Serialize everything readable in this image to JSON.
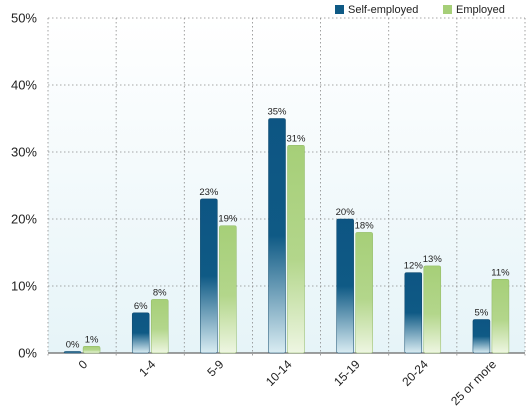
{
  "chart_data": {
    "type": "bar",
    "categories": [
      "0",
      "1-4",
      "5-9",
      "10-14",
      "15-19",
      "20-24",
      "25 or more"
    ],
    "series": [
      {
        "name": "Self-employed",
        "values": [
          0,
          6,
          23,
          35,
          20,
          12,
          5
        ],
        "labels": [
          "0%",
          "6%",
          "23%",
          "35%",
          "20%",
          "12%",
          "5%"
        ],
        "color": "#0f5a85"
      },
      {
        "name": "Employed",
        "values": [
          1,
          8,
          19,
          31,
          18,
          13,
          11
        ],
        "labels": [
          "1%",
          "8%",
          "19%",
          "31%",
          "18%",
          "13%",
          "11%"
        ],
        "color": "#a6cf78"
      }
    ],
    "ylim": [
      0,
      50
    ],
    "yticks": [
      0,
      10,
      20,
      30,
      40,
      50
    ],
    "ytick_labels": [
      "0%",
      "10%",
      "20%",
      "30%",
      "40%",
      "50%"
    ],
    "grid": true,
    "legend_position": "top-right",
    "plot_background": "#eef7fa"
  }
}
